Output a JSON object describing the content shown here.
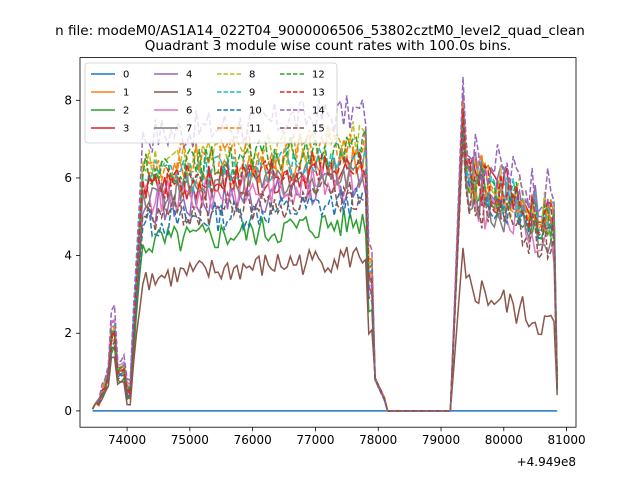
{
  "chart_data": {
    "type": "line",
    "suptitle": "n file: modeM0/AS1A14_022T04_9000006506_53802cztM0_level2_quad_clean",
    "title": "Quadrant 3 module wise count rates with 100.0s bins.",
    "xlabel": "",
    "ylabel": "",
    "x_offset_label": "+4.949e8",
    "xlim": [
      73250,
      81150
    ],
    "ylim": [
      -0.42,
      9.1
    ],
    "xticks": [
      74000,
      75000,
      76000,
      77000,
      78000,
      79000,
      80000,
      81000
    ],
    "xtick_labels": [
      "74000",
      "75000",
      "76000",
      "77000",
      "78000",
      "79000",
      "80000",
      "81000"
    ],
    "yticks": [
      0,
      2,
      4,
      6,
      8
    ],
    "ytick_labels": [
      "0",
      "2",
      "4",
      "6",
      "8"
    ],
    "grid": false,
    "legend_position": "upper-left",
    "legend_columns": 4,
    "x_values_description_free": true,
    "segments": [
      {
        "x_start": 73450,
        "x_end": 78150,
        "step": 50
      },
      {
        "x_start": 78250,
        "x_end": 79050,
        "step": 200
      },
      {
        "x_start": 79150,
        "x_end": 80850,
        "step": 50
      }
    ],
    "series": [
      {
        "name": "0",
        "color": "#1f77b4",
        "dash": false,
        "level": 0.0,
        "spike": 0.0,
        "peak2": 0.0,
        "amp": 0.0
      },
      {
        "name": "1",
        "color": "#ff7f0e",
        "dash": false,
        "level": 5.9,
        "spike": 1.9,
        "peak2": 7.9,
        "amp": 0.45
      },
      {
        "name": "2",
        "color": "#2ca02c",
        "dash": false,
        "level": 4.3,
        "spike": 1.6,
        "peak2": 7.4,
        "amp": 0.4
      },
      {
        "name": "3",
        "color": "#d62728",
        "dash": false,
        "level": 5.7,
        "spike": 2.0,
        "peak2": 8.0,
        "amp": 0.45
      },
      {
        "name": "4",
        "color": "#9467bd",
        "dash": false,
        "level": 5.2,
        "spike": 2.3,
        "peak2": 8.2,
        "amp": 0.45
      },
      {
        "name": "5",
        "color": "#8c564b",
        "dash": false,
        "level": 3.4,
        "spike": 1.4,
        "peak2": 4.2,
        "amp": 0.35
      },
      {
        "name": "6",
        "color": "#e377c2",
        "dash": false,
        "level": 5.4,
        "spike": 2.4,
        "peak2": 7.1,
        "amp": 0.45
      },
      {
        "name": "7",
        "color": "#7f7f7f",
        "dash": false,
        "level": 5.6,
        "spike": 2.0,
        "peak2": 7.3,
        "amp": 0.45
      },
      {
        "name": "8",
        "color": "#bcbd22",
        "dash": true,
        "level": 6.4,
        "spike": 2.1,
        "peak2": 7.9,
        "amp": 0.5
      },
      {
        "name": "9",
        "color": "#17becf",
        "dash": true,
        "level": 6.0,
        "spike": 2.2,
        "peak2": 7.8,
        "amp": 0.45
      },
      {
        "name": "10",
        "color": "#1f77b4",
        "dash": true,
        "level": 4.8,
        "spike": 1.8,
        "peak2": 7.5,
        "amp": 0.4
      },
      {
        "name": "11",
        "color": "#ff7f0e",
        "dash": true,
        "level": 6.3,
        "spike": 2.2,
        "peak2": 8.0,
        "amp": 0.5
      },
      {
        "name": "12",
        "color": "#2ca02c",
        "dash": true,
        "level": 6.2,
        "spike": 2.1,
        "peak2": 7.7,
        "amp": 0.45
      },
      {
        "name": "13",
        "color": "#d62728",
        "dash": true,
        "level": 5.8,
        "spike": 2.0,
        "peak2": 7.8,
        "amp": 0.45
      },
      {
        "name": "14",
        "color": "#9467bd",
        "dash": true,
        "level": 7.1,
        "spike": 2.7,
        "peak2": 8.6,
        "amp": 0.5
      },
      {
        "name": "15",
        "color": "#8c564b",
        "dash": true,
        "level": 5.0,
        "spike": 1.7,
        "peak2": 7.0,
        "amp": 0.45
      }
    ]
  }
}
